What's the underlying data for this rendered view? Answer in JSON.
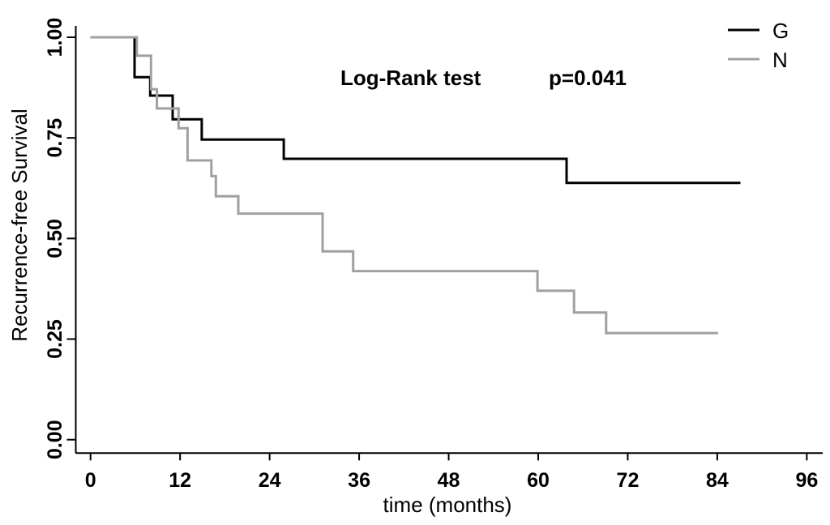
{
  "chart_data": {
    "type": "line",
    "subtype": "kaplan-meier-step",
    "xlabel": "time (months)",
    "ylabel": "Recurrence-free Survival",
    "xlim": [
      0,
      96
    ],
    "ylim": [
      0.0,
      1.0
    ],
    "x_ticks": [
      0,
      12,
      24,
      36,
      48,
      60,
      72,
      84,
      96
    ],
    "y_ticks": [
      {
        "label": "1.00",
        "value": 1.0
      },
      {
        "label": "0.75",
        "value": 0.75
      },
      {
        "label": "0.50",
        "value": 0.5
      },
      {
        "label": "0.25",
        "value": 0.25
      },
      {
        "label": "0.00",
        "value": 0.0
      }
    ],
    "grid": false,
    "legend_position": "top-right",
    "annotation": {
      "test_label": "Log-Rank test",
      "p_value": "p=0.041"
    },
    "series": [
      {
        "name": "G",
        "color": "#000000",
        "points": [
          [
            0,
            1.0
          ],
          [
            5.9,
            1.0
          ],
          [
            5.9,
            0.901
          ],
          [
            8.0,
            0.901
          ],
          [
            8.0,
            0.855
          ],
          [
            11.0,
            0.855
          ],
          [
            11.0,
            0.796
          ],
          [
            14.9,
            0.796
          ],
          [
            14.9,
            0.746
          ],
          [
            25.9,
            0.746
          ],
          [
            25.9,
            0.698
          ],
          [
            63.8,
            0.698
          ],
          [
            63.8,
            0.638
          ],
          [
            87.1,
            0.638
          ]
        ]
      },
      {
        "name": "N",
        "color": "#a0a0a0",
        "points": [
          [
            0,
            1.0
          ],
          [
            6.2,
            1.0
          ],
          [
            6.2,
            0.954
          ],
          [
            8.1,
            0.954
          ],
          [
            8.1,
            0.871
          ],
          [
            8.9,
            0.871
          ],
          [
            8.9,
            0.823
          ],
          [
            11.8,
            0.823
          ],
          [
            11.8,
            0.774
          ],
          [
            13.0,
            0.774
          ],
          [
            13.0,
            0.694
          ],
          [
            16.2,
            0.694
          ],
          [
            16.2,
            0.655
          ],
          [
            16.8,
            0.655
          ],
          [
            16.8,
            0.605
          ],
          [
            19.8,
            0.605
          ],
          [
            19.8,
            0.562
          ],
          [
            31.1,
            0.562
          ],
          [
            31.1,
            0.468
          ],
          [
            35.2,
            0.468
          ],
          [
            35.2,
            0.419
          ],
          [
            59.9,
            0.419
          ],
          [
            59.9,
            0.37
          ],
          [
            64.8,
            0.37
          ],
          [
            64.8,
            0.316
          ],
          [
            69.1,
            0.316
          ],
          [
            69.1,
            0.265
          ],
          [
            84.1,
            0.265
          ]
        ]
      }
    ]
  },
  "legend": {
    "items": [
      {
        "label": "G",
        "color": "#000000"
      },
      {
        "label": "N",
        "color": "#a0a0a0"
      }
    ]
  },
  "colors": {
    "axis": "#000000",
    "background": "#ffffff",
    "series_g": "#000000",
    "series_n": "#a0a0a0"
  }
}
